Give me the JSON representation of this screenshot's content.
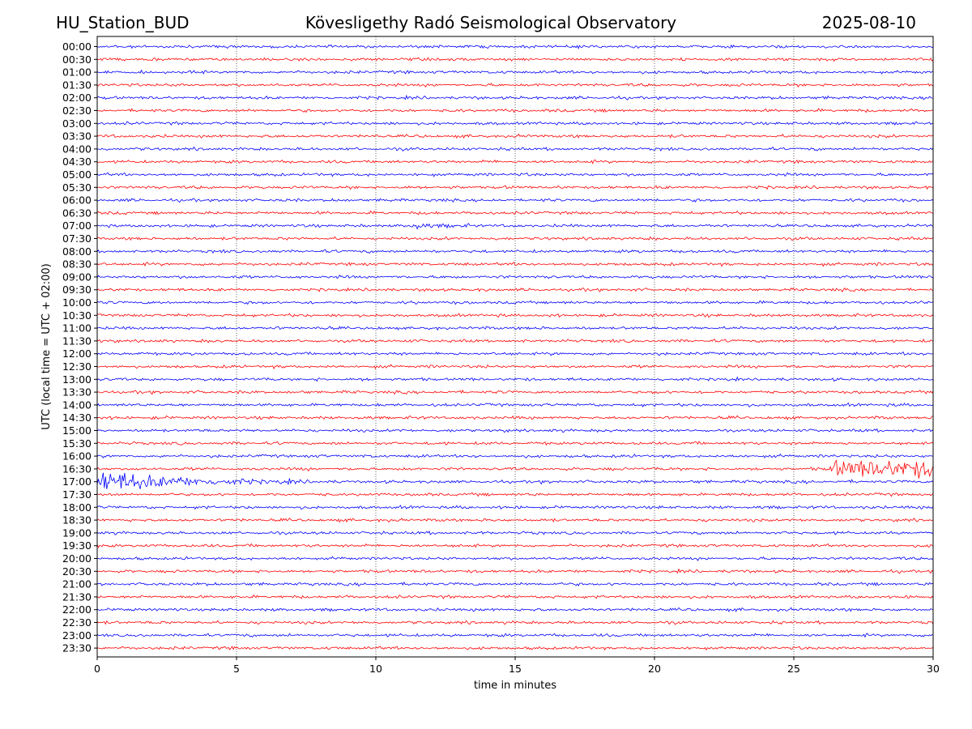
{
  "header": {
    "station": "HU_Station_BUD",
    "observatory": "Kövesligethy Radó Seismological Observatory",
    "date": "2025-08-10"
  },
  "chart_data": {
    "type": "line",
    "xlabel": "time in minutes",
    "ylabel": "UTC (local time = UTC + 02:00)",
    "xlim": [
      0,
      30
    ],
    "xticks": [
      0,
      5,
      10,
      15,
      20,
      25,
      30
    ],
    "grid": "vertical dotted at every 5 minutes",
    "series_colors": [
      "#0000ff",
      "#ff0000"
    ],
    "rows": [
      "00:00",
      "00:30",
      "01:00",
      "01:30",
      "02:00",
      "02:30",
      "03:00",
      "03:30",
      "04:00",
      "04:30",
      "05:00",
      "05:30",
      "06:00",
      "06:30",
      "07:00",
      "07:30",
      "08:00",
      "08:30",
      "09:00",
      "09:30",
      "10:00",
      "10:30",
      "11:00",
      "11:30",
      "12:00",
      "12:30",
      "13:00",
      "13:30",
      "14:00",
      "14:30",
      "15:00",
      "15:30",
      "16:00",
      "16:30",
      "17:00",
      "17:30",
      "18:00",
      "18:30",
      "19:00",
      "19:30",
      "20:00",
      "20:30",
      "21:00",
      "21:30",
      "22:00",
      "22:30",
      "23:00",
      "23:30"
    ],
    "events": [
      {
        "row": "07:00",
        "start_min": 11.3,
        "end_min": 14,
        "amplitude": 2.6,
        "decay": 0.9
      },
      {
        "row": "17:00",
        "start_min": 0.0,
        "end_min": 8,
        "amplitude": 12,
        "decay": 2.5
      },
      {
        "row": "16:30",
        "start_min": 26.3,
        "end_min": 30,
        "amplitude": 7.5,
        "decay": 0
      }
    ]
  }
}
